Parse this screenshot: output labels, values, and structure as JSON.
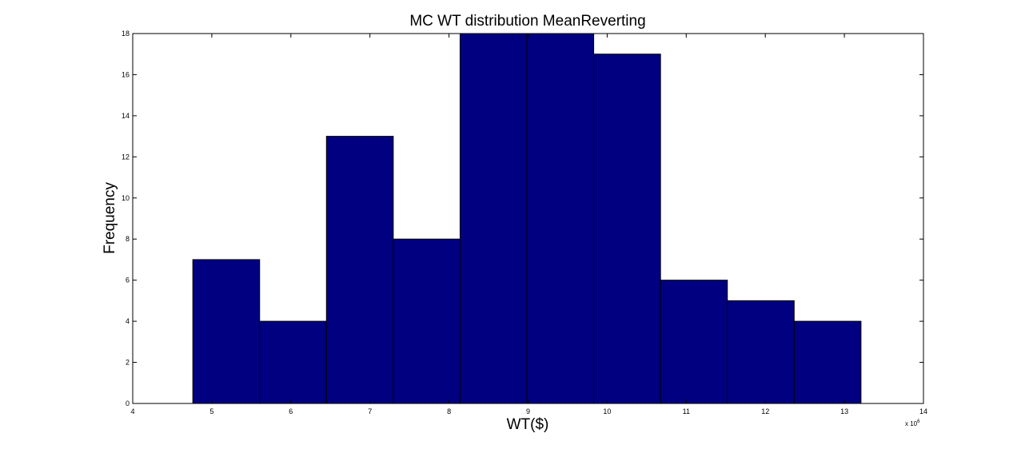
{
  "chart_data": {
    "type": "bar",
    "title": "MC WT distribution MeanReverting",
    "xlabel": "WT($)",
    "ylabel": "Frequency",
    "x_exponent_base": "x 10",
    "x_exponent_power": "6",
    "xlim": [
      4,
      14
    ],
    "ylim": [
      0,
      18
    ],
    "xticks": [
      4,
      5,
      6,
      7,
      8,
      9,
      10,
      11,
      12,
      13,
      14
    ],
    "yticks": [
      0,
      2,
      4,
      6,
      8,
      10,
      12,
      14,
      16,
      18
    ],
    "bin_start": 4.76,
    "bin_width": 0.845,
    "values": [
      7,
      4,
      13,
      8,
      18,
      18,
      17,
      6,
      5,
      4
    ],
    "bar_color": "#000080",
    "edge_color": "#000000",
    "grid": false
  }
}
